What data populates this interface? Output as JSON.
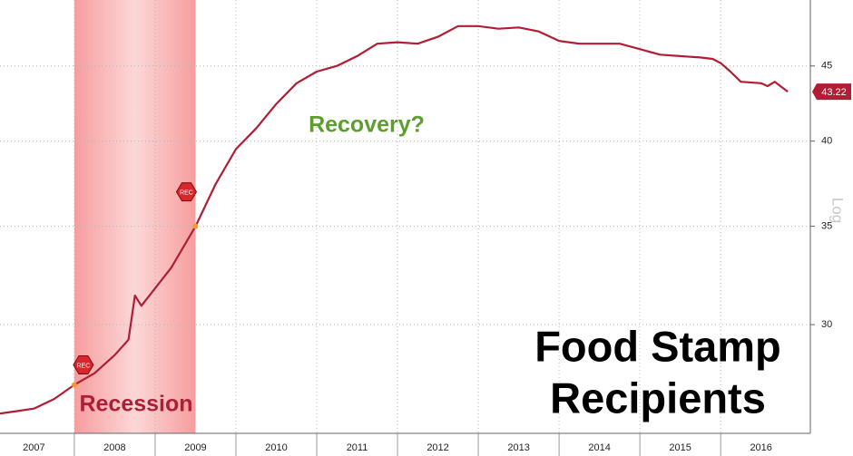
{
  "chart_data": {
    "type": "line",
    "title": [
      "Food Stamp",
      "Recipients"
    ],
    "annotations": [
      "Recession",
      "Recovery?"
    ],
    "y_axis_label": "Log",
    "log_scale": true,
    "grid": true,
    "color": "#b01e36",
    "x": [
      2007.08,
      2007.3,
      2007.5,
      2007.75,
      2008.0,
      2008.25,
      2008.5,
      2008.67,
      2008.75,
      2008.83,
      2008.95,
      2009.2,
      2009.5,
      2009.75,
      2010.0,
      2010.25,
      2010.5,
      2010.75,
      2011.0,
      2011.25,
      2011.5,
      2011.75,
      2012.0,
      2012.25,
      2012.5,
      2012.75,
      2013.0,
      2013.25,
      2013.5,
      2013.75,
      2014.0,
      2014.25,
      2014.5,
      2014.75,
      2015.0,
      2015.25,
      2015.5,
      2015.75,
      2015.9,
      2016.0,
      2016.12,
      2016.25,
      2016.5,
      2016.58,
      2016.67,
      2016.83
    ],
    "values": [
      26.1,
      26.2,
      26.3,
      26.7,
      27.3,
      27.8,
      28.6,
      29.3,
      31.4,
      30.9,
      31.5,
      32.8,
      35.0,
      37.4,
      39.5,
      40.8,
      42.4,
      43.8,
      44.6,
      45.0,
      45.7,
      46.6,
      46.7,
      46.6,
      47.1,
      47.9,
      47.9,
      47.7,
      47.8,
      47.5,
      46.8,
      46.6,
      46.6,
      46.6,
      46.2,
      45.8,
      45.7,
      45.6,
      45.5,
      45.2,
      44.6,
      43.9,
      43.8,
      43.6,
      43.9,
      43.22
    ],
    "shaded_regions": [
      {
        "x": [
          2008.0,
          2009.5
        ]
      }
    ],
    "markers": [
      {
        "x": 2008.0,
        "y": 27.3,
        "label": "REC"
      },
      {
        "x": 2009.5,
        "y": 35.0,
        "label": "REC"
      }
    ],
    "xlim": [
      2007.08,
      2017.11
    ],
    "ylim": [
      25.3,
      49.9
    ],
    "yticks": [
      30,
      35,
      40,
      45
    ],
    "xticks": [
      {
        "value": 2007.5,
        "label": "2007"
      },
      {
        "value": 2008.5,
        "label": "2008"
      },
      {
        "value": 2009.5,
        "label": "2009"
      },
      {
        "value": 2010.5,
        "label": "2010"
      },
      {
        "value": 2011.5,
        "label": "2011"
      },
      {
        "value": 2012.5,
        "label": "2012"
      },
      {
        "value": 2013.5,
        "label": "2013"
      },
      {
        "value": 2014.5,
        "label": "2014"
      },
      {
        "value": 2015.5,
        "label": "2015"
      },
      {
        "value": 2016.5,
        "label": "2016"
      }
    ]
  }
}
